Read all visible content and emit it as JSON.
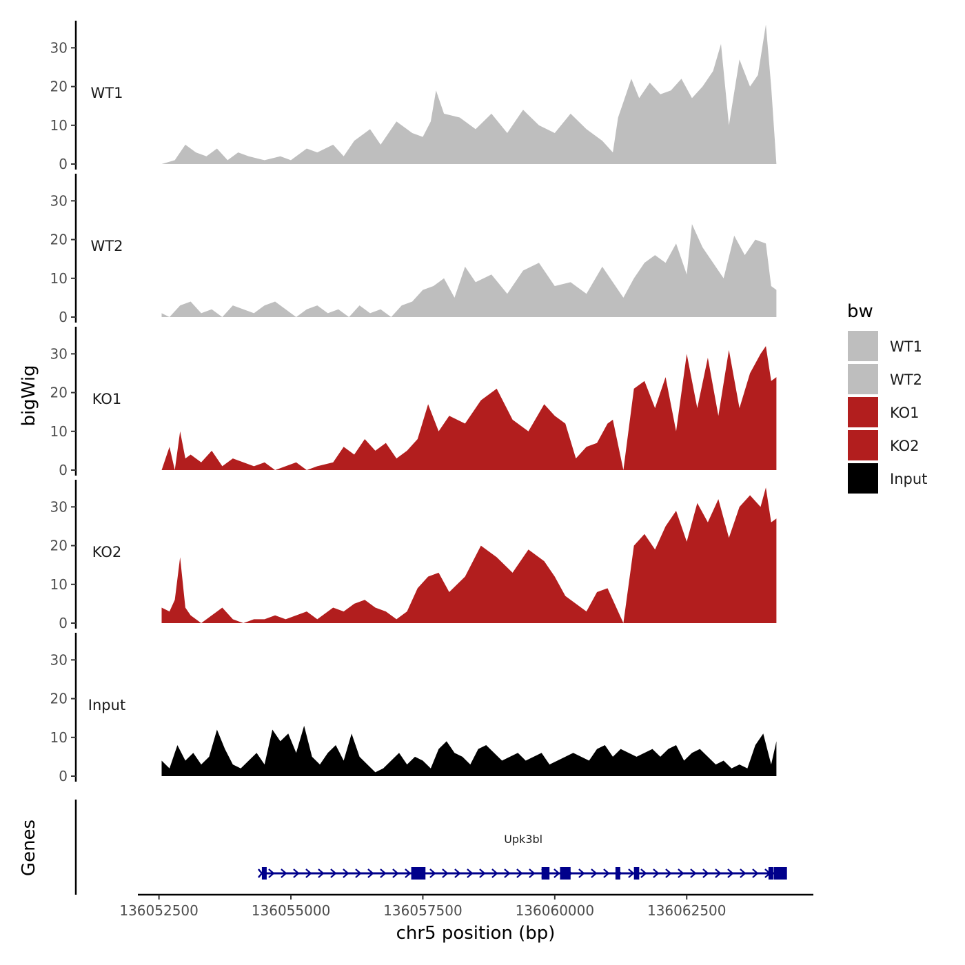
{
  "chart_data": {
    "type": "area",
    "ylabel": "bigWig",
    "xlabel": "chr5 position (bp)",
    "ylim": [
      0,
      37
    ],
    "yticks": [
      0,
      10,
      20,
      30
    ],
    "xlim": [
      136052100,
      136064900
    ],
    "xticks": [
      136052500,
      136055000,
      136057500,
      136060000,
      136062500
    ],
    "xtick_labels": [
      "136052500",
      "136055000",
      "136057500",
      "136060000",
      "136062500"
    ],
    "legend": {
      "title": "bw",
      "position": "right",
      "entries": [
        {
          "label": "WT1",
          "color": "#bebebe"
        },
        {
          "label": "WT2",
          "color": "#bebebe"
        },
        {
          "label": "KO1",
          "color": "#b21e1e"
        },
        {
          "label": "KO2",
          "color": "#b21e1e"
        },
        {
          "label": "Input",
          "color": "#000000"
        }
      ]
    },
    "series": [
      {
        "name": "WT1",
        "color": "#bebebe",
        "x": [
          136052550,
          136052800,
          136053000,
          136053200,
          136053400,
          136053600,
          136053800,
          136054000,
          136054200,
          136054500,
          136054800,
          136055000,
          136055300,
          136055500,
          136055800,
          136056000,
          136056200,
          136056500,
          136056700,
          136057000,
          136057300,
          136057500,
          136057650,
          136057750,
          136057900,
          136058200,
          136058500,
          136058800,
          136059100,
          136059400,
          136059700,
          136060000,
          136060300,
          136060600,
          136060900,
          136061100,
          136061200,
          136061300,
          136061450,
          136061600,
          136061800,
          136062000,
          136062200,
          136062400,
          136062600,
          136062800,
          136063000,
          136063150,
          136063300,
          136063500,
          136063700,
          136063850,
          136064000,
          136064100,
          136064200
        ],
        "y": [
          0,
          1,
          5,
          3,
          2,
          4,
          1,
          3,
          2,
          1,
          2,
          1,
          4,
          3,
          5,
          2,
          6,
          9,
          5,
          11,
          8,
          7,
          11,
          19,
          13,
          12,
          9,
          13,
          8,
          14,
          10,
          8,
          13,
          9,
          6,
          3,
          12,
          16,
          22,
          17,
          21,
          18,
          19,
          22,
          17,
          20,
          24,
          31,
          10,
          27,
          20,
          23,
          36,
          20,
          0
        ]
      },
      {
        "name": "WT2",
        "color": "#bebebe",
        "x": [
          136052550,
          136052700,
          136052900,
          136053100,
          136053300,
          136053500,
          136053700,
          136053900,
          136054100,
          136054300,
          136054500,
          136054700,
          136054900,
          136055100,
          136055300,
          136055500,
          136055700,
          136055900,
          136056100,
          136056300,
          136056500,
          136056700,
          136056900,
          136057100,
          136057300,
          136057500,
          136057700,
          136057900,
          136058100,
          136058300,
          136058500,
          136058800,
          136059100,
          136059400,
          136059700,
          136060000,
          136060300,
          136060600,
          136060900,
          136061100,
          136061300,
          136061500,
          136061700,
          136061900,
          136062100,
          136062300,
          136062500,
          136062600,
          136062800,
          136063000,
          136063200,
          136063400,
          136063600,
          136063800,
          136064000,
          136064100,
          136064200
        ],
        "y": [
          1,
          0,
          3,
          4,
          1,
          2,
          0,
          3,
          2,
          1,
          3,
          4,
          2,
          0,
          2,
          3,
          1,
          2,
          0,
          3,
          1,
          2,
          0,
          3,
          4,
          7,
          8,
          10,
          5,
          13,
          9,
          11,
          6,
          12,
          14,
          8,
          9,
          6,
          13,
          9,
          5,
          10,
          14,
          16,
          14,
          19,
          11,
          24,
          18,
          14,
          10,
          21,
          16,
          20,
          19,
          8,
          7
        ]
      },
      {
        "name": "KO1",
        "color": "#b21e1e",
        "x": [
          136052550,
          136052700,
          136052800,
          136052900,
          136053000,
          136053100,
          136053300,
          136053500,
          136053700,
          136053900,
          136054100,
          136054300,
          136054500,
          136054700,
          136054900,
          136055100,
          136055300,
          136055500,
          136055800,
          136056000,
          136056200,
          136056400,
          136056600,
          136056800,
          136057000,
          136057200,
          136057400,
          136057600,
          136057800,
          136058000,
          136058300,
          136058600,
          136058900,
          136059200,
          136059500,
          136059800,
          136060000,
          136060200,
          136060400,
          136060600,
          136060800,
          136061000,
          136061100,
          136061300,
          136061500,
          136061700,
          136061900,
          136062100,
          136062300,
          136062500,
          136062700,
          136062900,
          136063100,
          136063300,
          136063500,
          136063700,
          136063900,
          136064000,
          136064100,
          136064200
        ],
        "y": [
          0,
          6,
          0,
          10,
          3,
          4,
          2,
          5,
          1,
          3,
          2,
          1,
          2,
          0,
          1,
          2,
          0,
          1,
          2,
          6,
          4,
          8,
          5,
          7,
          3,
          5,
          8,
          17,
          10,
          14,
          12,
          18,
          21,
          13,
          10,
          17,
          14,
          12,
          3,
          6,
          7,
          12,
          13,
          0,
          21,
          23,
          16,
          24,
          10,
          30,
          16,
          29,
          14,
          31,
          16,
          25,
          30,
          32,
          23,
          24
        ]
      },
      {
        "name": "KO2",
        "color": "#b21e1e",
        "x": [
          136052550,
          136052700,
          136052800,
          136052900,
          136053000,
          136053100,
          136053300,
          136053500,
          136053700,
          136053900,
          136054100,
          136054300,
          136054500,
          136054700,
          136054900,
          136055100,
          136055300,
          136055500,
          136055800,
          136056000,
          136056200,
          136056400,
          136056600,
          136056800,
          136057000,
          136057200,
          136057400,
          136057600,
          136057800,
          136058000,
          136058300,
          136058600,
          136058900,
          136059200,
          136059500,
          136059800,
          136060000,
          136060200,
          136060400,
          136060600,
          136060800,
          136061000,
          136061100,
          136061300,
          136061500,
          136061700,
          136061900,
          136062100,
          136062300,
          136062500,
          136062700,
          136062900,
          136063100,
          136063300,
          136063500,
          136063700,
          136063900,
          136064000,
          136064100,
          136064200
        ],
        "y": [
          4,
          3,
          6,
          17,
          4,
          2,
          0,
          2,
          4,
          1,
          0,
          1,
          1,
          2,
          1,
          2,
          3,
          1,
          4,
          3,
          5,
          6,
          4,
          3,
          1,
          3,
          9,
          12,
          13,
          8,
          12,
          20,
          17,
          13,
          19,
          16,
          12,
          7,
          5,
          3,
          8,
          9,
          6,
          0,
          20,
          23,
          19,
          25,
          29,
          21,
          31,
          26,
          32,
          22,
          30,
          33,
          30,
          35,
          26,
          27
        ]
      },
      {
        "name": "Input",
        "color": "#000000",
        "x": [
          136052550,
          136052700,
          136052850,
          136053000,
          136053150,
          136053300,
          136053450,
          136053600,
          136053750,
          136053900,
          136054050,
          136054200,
          136054350,
          136054500,
          136054650,
          136054800,
          136054950,
          136055100,
          136055250,
          136055400,
          136055550,
          136055700,
          136055850,
          136056000,
          136056150,
          136056300,
          136056450,
          136056600,
          136056750,
          136056900,
          136057050,
          136057200,
          136057350,
          136057500,
          136057650,
          136057800,
          136057950,
          136058100,
          136058250,
          136058400,
          136058550,
          136058700,
          136058850,
          136059000,
          136059150,
          136059300,
          136059450,
          136059600,
          136059750,
          136059900,
          136060050,
          136060200,
          136060350,
          136060500,
          136060650,
          136060800,
          136060950,
          136061100,
          136061250,
          136061400,
          136061550,
          136061700,
          136061850,
          136062000,
          136062150,
          136062300,
          136062450,
          136062600,
          136062750,
          136062900,
          136063050,
          136063200,
          136063350,
          136063500,
          136063650,
          136063800,
          136063950,
          136064100,
          136064200
        ],
        "y": [
          4,
          2,
          8,
          4,
          6,
          3,
          5,
          12,
          7,
          3,
          2,
          4,
          6,
          3,
          12,
          9,
          11,
          6,
          13,
          5,
          3,
          6,
          8,
          4,
          11,
          5,
          3,
          1,
          2,
          4,
          6,
          3,
          5,
          4,
          2,
          7,
          9,
          6,
          5,
          3,
          7,
          8,
          6,
          4,
          5,
          6,
          4,
          5,
          6,
          3,
          4,
          5,
          6,
          5,
          4,
          7,
          8,
          5,
          7,
          6,
          5,
          6,
          7,
          5,
          7,
          8,
          4,
          6,
          7,
          5,
          3,
          4,
          2,
          3,
          2,
          8,
          11,
          3,
          9
        ]
      }
    ],
    "genes": {
      "track_label": "Genes",
      "name": "Upk3bl",
      "color": "#00008b",
      "start": 136054450,
      "end": 136064200,
      "strand": "+",
      "exons": [
        [
          136054450,
          136054520
        ],
        [
          136057280,
          136057550
        ],
        [
          136059750,
          136059900
        ],
        [
          136060100,
          136060300
        ],
        [
          136061150,
          136061230
        ],
        [
          136061500,
          136061600
        ],
        [
          136064050,
          136064120
        ],
        [
          136064150,
          136064400
        ]
      ]
    }
  }
}
